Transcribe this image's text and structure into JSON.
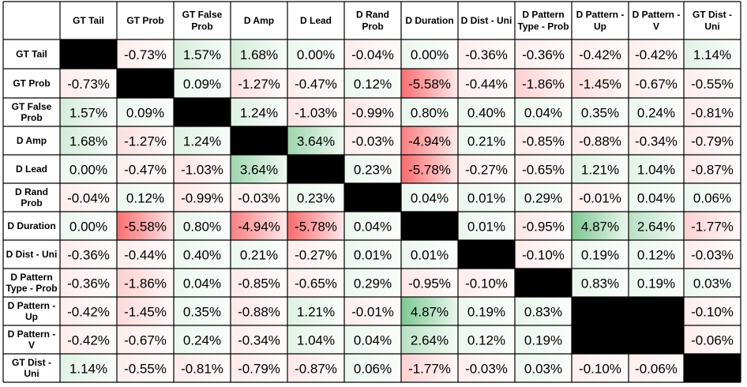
{
  "chart_data": {
    "type": "heatmap",
    "labels": [
      "GT Tail",
      "GT Prob",
      "GT False Prob",
      "D Amp",
      "D Lead",
      "D Rand Prob",
      "D Duration",
      "D Dist - Uni",
      "D Pattern Type - Prob",
      "D Pattern - Up",
      "D Pattern - V",
      "GT Dist - Uni"
    ],
    "header_lines": [
      [
        "GT Tail"
      ],
      [
        "GT Prob"
      ],
      [
        "GT False",
        "Prob"
      ],
      [
        "D Amp"
      ],
      [
        "D Lead"
      ],
      [
        "D Rand",
        "Prob"
      ],
      [
        "D Duration"
      ],
      [
        "D Dist - Uni"
      ],
      [
        "D Pattern",
        "Type - Prob"
      ],
      [
        "D Pattern -",
        "Up"
      ],
      [
        "D Pattern -",
        "V"
      ],
      [
        "GT Dist -",
        "Uni"
      ]
    ],
    "unit": "%",
    "decimals": 2,
    "values": [
      [
        null,
        -0.73,
        1.57,
        1.68,
        0.0,
        -0.04,
        0.0,
        -0.36,
        -0.36,
        -0.42,
        -0.42,
        1.14
      ],
      [
        -0.73,
        null,
        0.09,
        -1.27,
        -0.47,
        0.12,
        -5.58,
        -0.44,
        -1.86,
        -1.45,
        -0.67,
        -0.55
      ],
      [
        1.57,
        0.09,
        null,
        1.24,
        -1.03,
        -0.99,
        0.8,
        0.4,
        0.04,
        0.35,
        0.24,
        -0.81
      ],
      [
        1.68,
        -1.27,
        1.24,
        null,
        3.64,
        -0.03,
        -4.94,
        0.21,
        -0.85,
        -0.88,
        -0.34,
        -0.79
      ],
      [
        0.0,
        -0.47,
        -1.03,
        3.64,
        null,
        0.23,
        -5.78,
        -0.27,
        -0.65,
        1.21,
        1.04,
        -0.87
      ],
      [
        -0.04,
        0.12,
        -0.99,
        -0.03,
        0.23,
        null,
        0.04,
        0.01,
        0.29,
        -0.01,
        0.04,
        0.06
      ],
      [
        0.0,
        -5.58,
        0.8,
        -4.94,
        -5.78,
        0.04,
        null,
        0.01,
        -0.95,
        4.87,
        2.64,
        -1.77
      ],
      [
        -0.36,
        -0.44,
        0.4,
        0.21,
        -0.27,
        0.01,
        0.01,
        null,
        -0.1,
        0.19,
        0.12,
        -0.03
      ],
      [
        -0.36,
        -1.86,
        0.04,
        -0.85,
        -0.65,
        0.29,
        -0.95,
        -0.1,
        null,
        0.83,
        0.19,
        0.03
      ],
      [
        -0.42,
        -1.45,
        0.35,
        -0.88,
        1.21,
        -0.01,
        4.87,
        0.19,
        0.83,
        null,
        null,
        -0.1
      ],
      [
        -0.42,
        -0.67,
        0.24,
        -0.34,
        1.04,
        0.04,
        2.64,
        0.12,
        0.19,
        null,
        null,
        -0.06
      ],
      [
        1.14,
        -0.55,
        -0.81,
        -0.79,
        -0.87,
        0.06,
        -1.77,
        -0.03,
        0.03,
        -0.1,
        -0.06,
        null
      ]
    ],
    "colors": {
      "positive": "#63be7b",
      "negative": "#f8696b",
      "neutral": "#ffffff",
      "blank": "#000000",
      "grid": "#000000"
    }
  }
}
